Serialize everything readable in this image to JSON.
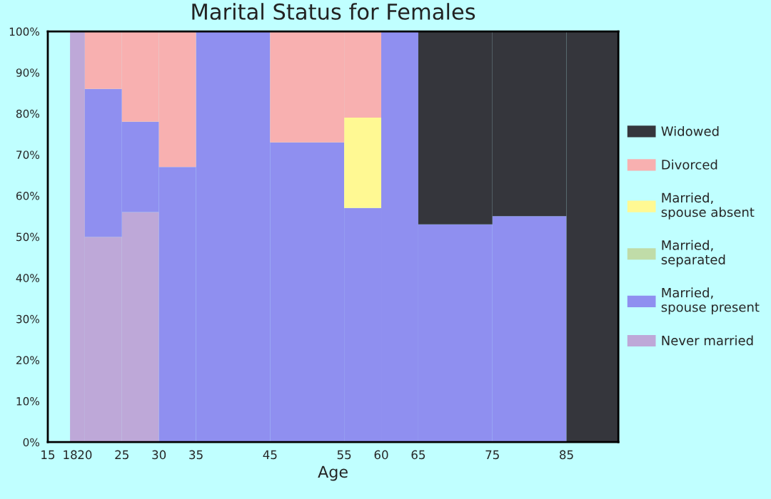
{
  "chart_data": {
    "type": "bar",
    "stacked": true,
    "title": "Marital Status for Females",
    "xlabel": "Age",
    "x": [
      19,
      22.5,
      27.5,
      32.5,
      40,
      50,
      57.5,
      62.5,
      70,
      80,
      88.5
    ],
    "xlim": [
      15,
      92
    ],
    "xticks": [
      15,
      18,
      20,
      25,
      30,
      35,
      45,
      55,
      60,
      65,
      75,
      85
    ],
    "ylim": [
      0,
      100
    ],
    "yticks": [
      {
        "value": 0,
        "label": "0%"
      },
      {
        "value": 10,
        "label": "10%"
      },
      {
        "value": 20,
        "label": "20%"
      },
      {
        "value": 30,
        "label": "30%"
      },
      {
        "value": 40,
        "label": "40%"
      },
      {
        "value": 50,
        "label": "50%"
      },
      {
        "value": 60,
        "label": "60%"
      },
      {
        "value": 70,
        "label": "70%"
      },
      {
        "value": 80,
        "label": "80%"
      },
      {
        "value": 90,
        "label": "90%"
      },
      {
        "value": 100,
        "label": "100%"
      }
    ],
    "grid": false,
    "legend": "right",
    "series": [
      {
        "name": "Never married",
        "color": "#bea8d8",
        "values": [
          100,
          50,
          56,
          0,
          0,
          0,
          0,
          0,
          0,
          0,
          0
        ]
      },
      {
        "name": "Married, spouse present",
        "color": "#8f8ff0",
        "values": [
          0,
          36,
          22,
          67,
          100,
          73,
          57,
          100,
          53,
          55,
          0
        ]
      },
      {
        "name": "Married, separated",
        "color": "#c0dca8",
        "values": [
          0,
          0,
          0,
          0,
          0,
          0,
          0,
          0,
          0,
          0,
          0
        ]
      },
      {
        "name": "Married, spouse absent",
        "color": "#fff993",
        "values": [
          0,
          0,
          0,
          0,
          0,
          0,
          22,
          0,
          0,
          0,
          0
        ]
      },
      {
        "name": "Divorced",
        "color": "#f8b0b0",
        "values": [
          0,
          14,
          22,
          33,
          0,
          27,
          21,
          0,
          0,
          0,
          0
        ]
      },
      {
        "name": "Widowed",
        "color": "#35363c",
        "values": [
          0,
          0,
          0,
          0,
          0,
          0,
          0,
          0,
          47,
          45,
          100
        ]
      }
    ]
  }
}
